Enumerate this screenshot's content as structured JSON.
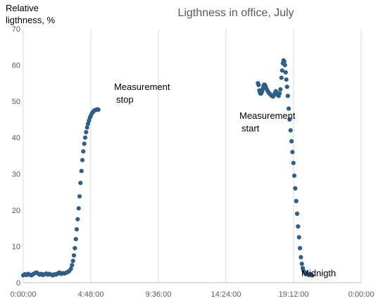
{
  "chart_data": {
    "type": "scatter",
    "title": "Ligthness in office, July",
    "ylabel_lines": [
      "Relative",
      "ligthness, %"
    ],
    "xlabel": "",
    "ylim": [
      0,
      70
    ],
    "yticks": [
      0,
      10,
      20,
      30,
      40,
      50,
      60,
      70
    ],
    "xlim_minutes": [
      0,
      1440
    ],
    "xticks": [
      {
        "minutes": 0,
        "label": "0:00:00"
      },
      {
        "minutes": 288,
        "label": "4:48:00"
      },
      {
        "minutes": 576,
        "label": "9:36:00"
      },
      {
        "minutes": 864,
        "label": "14:24:00"
      },
      {
        "minutes": 1152,
        "label": "19:12:00"
      },
      {
        "minutes": 1440,
        "label": "0:00:00"
      }
    ],
    "grid": "vertical",
    "marker_color": "#2e5f8a",
    "annotations": [
      {
        "lines": [
          "Measurement",
          "stop"
        ]
      },
      {
        "lines": [
          "Measurement",
          "start"
        ]
      },
      {
        "lines": [
          "Midnigth"
        ]
      }
    ],
    "series": [
      {
        "points": [
          [
            0,
            2.0
          ],
          [
            7,
            2.3
          ],
          [
            14,
            2.1
          ],
          [
            21,
            2.4
          ],
          [
            28,
            2.2
          ],
          [
            35,
            2.0
          ],
          [
            42,
            2.3
          ],
          [
            49,
            2.6
          ],
          [
            56,
            2.8
          ],
          [
            63,
            2.5
          ],
          [
            70,
            2.2
          ],
          [
            77,
            2.4
          ],
          [
            84,
            2.1
          ],
          [
            91,
            2.3
          ],
          [
            98,
            2.5
          ],
          [
            105,
            2.2
          ],
          [
            112,
            2.4
          ],
          [
            119,
            2.2
          ],
          [
            126,
            2.0
          ],
          [
            133,
            2.3
          ],
          [
            140,
            2.2
          ],
          [
            147,
            2.5
          ],
          [
            154,
            2.8
          ],
          [
            161,
            2.4
          ],
          [
            168,
            2.6
          ],
          [
            175,
            2.5
          ],
          [
            182,
            2.7
          ],
          [
            189,
            2.9
          ],
          [
            196,
            3.2
          ],
          [
            203,
            3.8
          ],
          [
            208,
            4.8
          ],
          [
            212,
            6.0
          ],
          [
            216,
            7.5
          ],
          [
            220,
            9.5
          ],
          [
            224,
            12.0
          ],
          [
            228,
            14.7
          ],
          [
            232,
            17.5
          ],
          [
            236,
            20.5
          ],
          [
            240,
            23.8
          ],
          [
            244,
            27.5
          ],
          [
            248,
            30.8
          ],
          [
            252,
            33.8
          ],
          [
            256,
            36.2
          ],
          [
            260,
            38.3
          ],
          [
            264,
            40.0
          ],
          [
            268,
            41.5
          ],
          [
            272,
            42.8
          ],
          [
            276,
            43.8
          ],
          [
            280,
            44.7
          ],
          [
            284,
            45.5
          ],
          [
            288,
            46.0
          ],
          [
            292,
            46.6
          ],
          [
            296,
            47.0
          ],
          [
            300,
            47.3
          ],
          [
            304,
            47.5
          ],
          [
            308,
            47.6
          ],
          [
            312,
            47.7
          ],
          [
            316,
            47.8
          ],
          [
            320,
            47.7
          ],
          [
            1000,
            55.0
          ],
          [
            1003,
            54.5
          ],
          [
            1006,
            53.0
          ],
          [
            1009,
            52.3
          ],
          [
            1012,
            52.1
          ],
          [
            1015,
            52.3
          ],
          [
            1018,
            52.8
          ],
          [
            1021,
            53.5
          ],
          [
            1024,
            54.3
          ],
          [
            1027,
            54.6
          ],
          [
            1030,
            54.5
          ],
          [
            1033,
            54.0
          ],
          [
            1036,
            53.5
          ],
          [
            1040,
            53.0
          ],
          [
            1044,
            52.6
          ],
          [
            1048,
            52.2
          ],
          [
            1052,
            52.0
          ],
          [
            1056,
            51.7
          ],
          [
            1060,
            51.5
          ],
          [
            1064,
            51.3
          ],
          [
            1068,
            51.7
          ],
          [
            1072,
            52.2
          ],
          [
            1076,
            52.8
          ],
          [
            1080,
            52.4
          ],
          [
            1084,
            51.8
          ],
          [
            1088,
            51.5
          ],
          [
            1092,
            52.2
          ],
          [
            1096,
            53.3
          ],
          [
            1100,
            56.5
          ],
          [
            1103,
            58.5
          ],
          [
            1106,
            60.5
          ],
          [
            1109,
            61.3
          ],
          [
            1112,
            61.0
          ],
          [
            1115,
            60.0
          ],
          [
            1118,
            58.0
          ],
          [
            1121,
            56.0
          ],
          [
            1124,
            54.0
          ],
          [
            1127,
            51.5
          ],
          [
            1131,
            48.0
          ],
          [
            1135,
            45.0
          ],
          [
            1139,
            42.0
          ],
          [
            1143,
            39.0
          ],
          [
            1147,
            36.0
          ],
          [
            1151,
            33.0
          ],
          [
            1155,
            29.5
          ],
          [
            1159,
            26.0
          ],
          [
            1163,
            22.5
          ],
          [
            1167,
            19.0
          ],
          [
            1171,
            15.5
          ],
          [
            1175,
            12.5
          ],
          [
            1179,
            9.5
          ],
          [
            1183,
            7.0
          ],
          [
            1187,
            5.2
          ],
          [
            1191,
            4.0
          ],
          [
            1195,
            3.2
          ],
          [
            1199,
            2.8
          ],
          [
            1203,
            2.6
          ],
          [
            1207,
            2.4
          ],
          [
            1211,
            2.3
          ],
          [
            1215,
            2.2
          ],
          [
            1219,
            2.1
          ],
          [
            1223,
            2.3
          ],
          [
            1227,
            2.1
          ],
          [
            1231,
            2.0
          ]
        ]
      }
    ]
  }
}
